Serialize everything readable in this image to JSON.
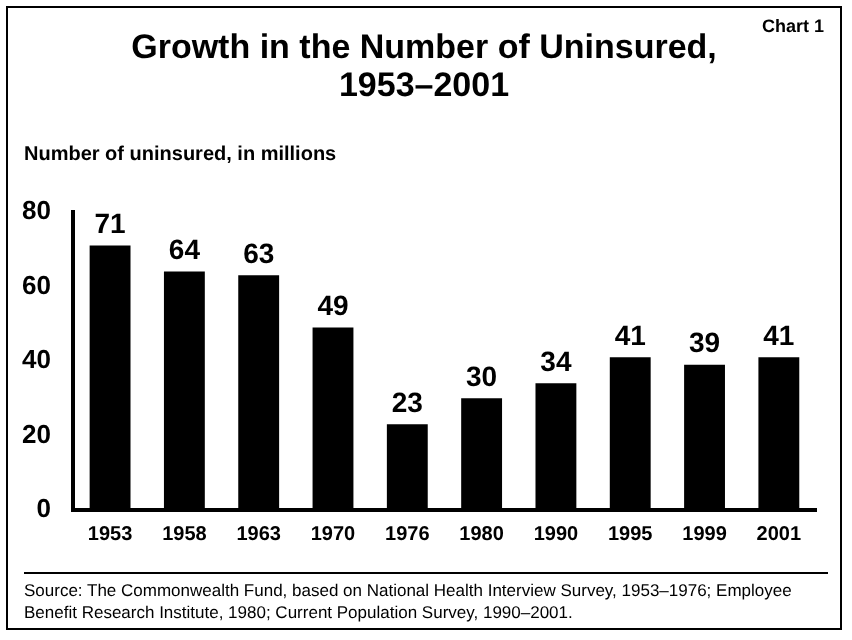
{
  "chart_data": {
    "type": "bar",
    "title": "Growth in the Number of Uninsured, 1953–2001",
    "ylabel": "Number of uninsured, in millions",
    "categories": [
      "1953",
      "1958",
      "1963",
      "1970",
      "1976",
      "1980",
      "1990",
      "1995",
      "1999",
      "2001"
    ],
    "values": [
      71,
      64,
      63,
      49,
      23,
      30,
      34,
      41,
      39,
      41
    ],
    "color": "#000000",
    "ylim": [
      0,
      80
    ],
    "yticks": [
      0,
      20,
      40,
      60,
      80
    ],
    "grid": false,
    "legend": false,
    "data_labels": true,
    "annotations": [
      "Chart 1",
      "Source: The Commonwealth Fund, based on National Health Interview Survey, 1953–1976; Employee Benefit Research Institute, 1980; Current Population Survey, 1990–2001."
    ]
  }
}
